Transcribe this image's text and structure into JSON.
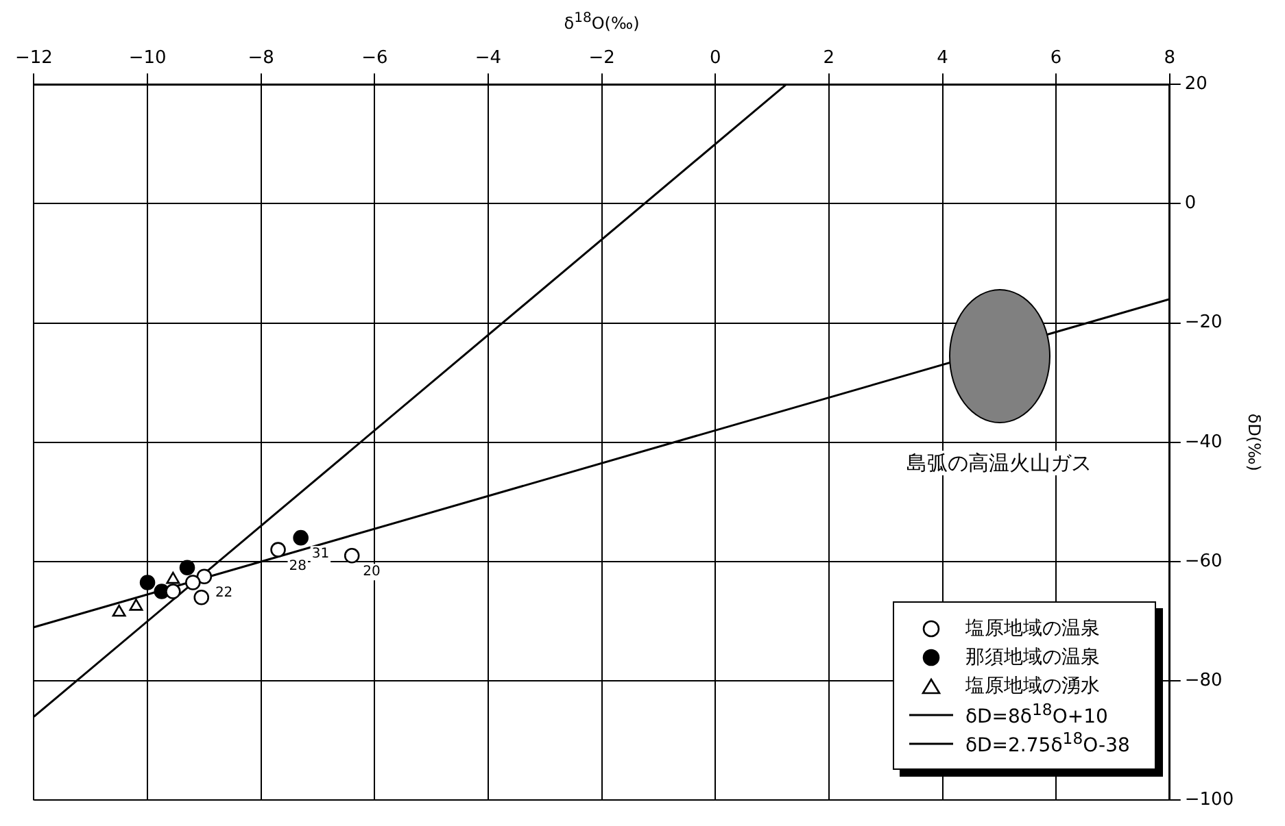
{
  "chart_data": {
    "type": "scatter",
    "xlabel": "δ$^{18}$O(‰)",
    "ylabel": "δD(‰)",
    "xlim": [
      -12,
      8
    ],
    "ylim": [
      -100,
      20
    ],
    "xticks": [
      -12,
      -10,
      -8,
      -6,
      -4,
      -2,
      0,
      2,
      4,
      6,
      8
    ],
    "yticks": [
      -100,
      -80,
      -60,
      -40,
      -20,
      0,
      20
    ],
    "grid": true,
    "legend": "bottom right",
    "series": [
      {
        "name": "塩原地域の温泉",
        "marker": "circle",
        "color": "#ffffff",
        "x": [
          -7.7,
          -6.4,
          -9.0,
          -9.2,
          -9.55,
          -9.05
        ],
        "values": [
          -58,
          -59,
          -62.5,
          -63.5,
          -65,
          -66
        ]
      },
      {
        "name": "那須地域の温泉",
        "marker": "circle",
        "color": "#000000",
        "x": [
          -7.3,
          -9.3,
          -10.0,
          -9.75
        ],
        "values": [
          -56,
          -61,
          -63.5,
          -65
        ]
      },
      {
        "name": "塩原地域の湧水",
        "marker": "triangle",
        "color": "#ffffff",
        "x": [
          -9.55,
          -10.2,
          -10.5
        ],
        "values": [
          -63,
          -67.5,
          -68.5
        ]
      },
      {
        "name": "δD=8δ$^{18}$O+10",
        "type": "line",
        "marker": "none",
        "color": "#000000",
        "x": [
          -12,
          1.25
        ],
        "values": [
          -86,
          20
        ]
      },
      {
        "name": "δD=2.75δ$^{18}$O-38",
        "type": "line",
        "marker": "none",
        "color": "#000000",
        "x": [
          -12,
          8
        ],
        "values": [
          -71,
          -16
        ]
      }
    ],
    "annotations": [
      {
        "text": "28",
        "x": -7.7,
        "y": -58
      },
      {
        "text": "20",
        "x": -6.4,
        "y": -59
      },
      {
        "text": "22",
        "x": -9.0,
        "y": -62.5
      },
      {
        "text": "31",
        "x": -7.3,
        "y": -56
      },
      "島弧の高温火山ガス"
    ]
  }
}
